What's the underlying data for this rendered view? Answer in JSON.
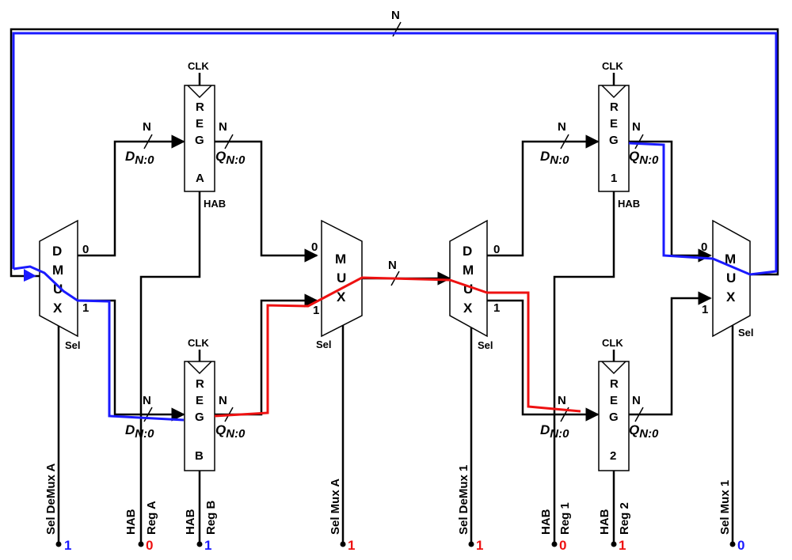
{
  "labels": {
    "bus_width": "N",
    "clk": "CLK",
    "hab": "HAB",
    "sel": "Sel",
    "d_port": "D",
    "q_port": "Q",
    "port_sub": "N:0",
    "in0": "0",
    "in1": "1"
  },
  "blocks": {
    "demux_a": [
      "D",
      "M",
      "U",
      "X"
    ],
    "mux_a": [
      "M",
      "U",
      "X"
    ],
    "demux_1": [
      "D",
      "M",
      "U",
      "X"
    ],
    "mux_1": [
      "M",
      "U",
      "X"
    ],
    "reg_a": [
      "R",
      "E",
      "G",
      "A"
    ],
    "reg_b": [
      "R",
      "E",
      "G",
      "B"
    ],
    "reg_1": [
      "R",
      "E",
      "G",
      "1"
    ],
    "reg_2": [
      "R",
      "E",
      "G",
      "2"
    ]
  },
  "signals": [
    {
      "name": "Sel DeMux A",
      "value": "1",
      "color": "#1a1aff"
    },
    {
      "name": "HAB",
      "value": "",
      "color": "#000000"
    },
    {
      "name": "Reg A",
      "value": "0",
      "color": "#ee1111"
    },
    {
      "name": "HAB",
      "value": "",
      "color": "#000000"
    },
    {
      "name": "Reg B",
      "value": "1",
      "color": "#1a1aff"
    },
    {
      "name": "Sel Mux A",
      "value": "1",
      "color": "#ee1111"
    },
    {
      "name": "Sel DeMux 1",
      "value": "1",
      "color": "#ee1111"
    },
    {
      "name": "HAB",
      "value": "",
      "color": "#000000"
    },
    {
      "name": "Reg 1",
      "value": "0",
      "color": "#ee1111"
    },
    {
      "name": "HAB",
      "value": "",
      "color": "#000000"
    },
    {
      "name": "Reg 2",
      "value": "1",
      "color": "#ee1111"
    },
    {
      "name": "Sel Mux 1",
      "value": "0",
      "color": "#1a1aff"
    }
  ],
  "paths": {
    "blue": "#1a1aff",
    "red": "#ee1111"
  }
}
